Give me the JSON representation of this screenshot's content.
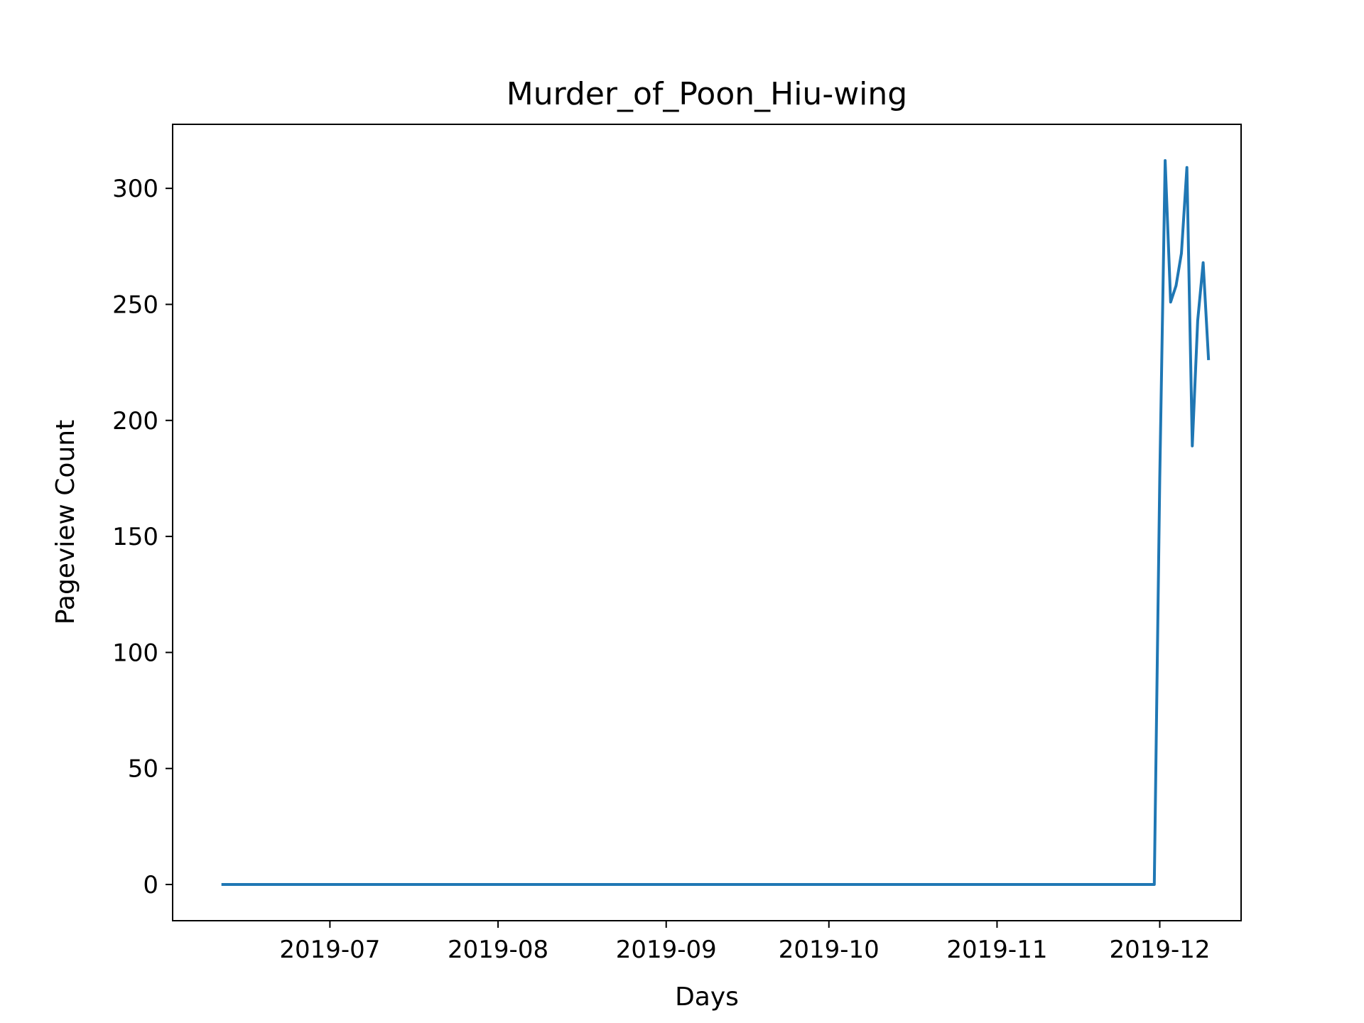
{
  "chart_data": {
    "type": "line",
    "title": "Murder_of_Poon_Hiu-wing",
    "xlabel": "Days",
    "ylabel": "Pageview Count",
    "xlim": [
      "2019-06-02",
      "2019-12-16"
    ],
    "ylim": [
      -15.6,
      327.6
    ],
    "grid": false,
    "color": "#1f77b4",
    "x_ticks": [
      {
        "date": "2019-07-01",
        "label": "2019-07"
      },
      {
        "date": "2019-08-01",
        "label": "2019-08"
      },
      {
        "date": "2019-09-01",
        "label": "2019-09"
      },
      {
        "date": "2019-10-01",
        "label": "2019-10"
      },
      {
        "date": "2019-11-01",
        "label": "2019-11"
      },
      {
        "date": "2019-12-01",
        "label": "2019-12"
      }
    ],
    "y_ticks": [
      0,
      50,
      100,
      150,
      200,
      250,
      300
    ],
    "series": [
      {
        "points": [
          {
            "date": "2019-06-11",
            "y": 0
          },
          {
            "date": "2019-11-30",
            "y": 0
          },
          {
            "date": "2019-12-01",
            "y": 175
          },
          {
            "date": "2019-12-02",
            "y": 312
          },
          {
            "date": "2019-12-03",
            "y": 251
          },
          {
            "date": "2019-12-04",
            "y": 258
          },
          {
            "date": "2019-12-05",
            "y": 272
          },
          {
            "date": "2019-12-06",
            "y": 309
          },
          {
            "date": "2019-12-07",
            "y": 189
          },
          {
            "date": "2019-12-08",
            "y": 243
          },
          {
            "date": "2019-12-09",
            "y": 268
          },
          {
            "date": "2019-12-10",
            "y": 226
          }
        ]
      }
    ]
  }
}
